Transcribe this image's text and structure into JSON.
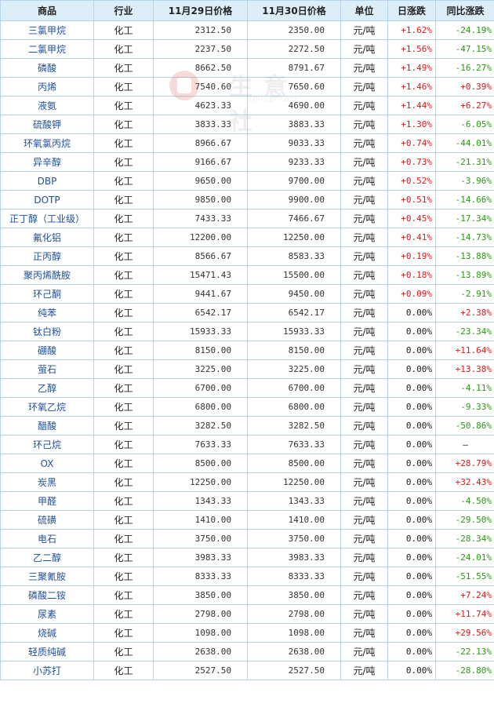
{
  "table": {
    "headers": {
      "name": "商品",
      "industry": "行业",
      "price1": "11月29日价格",
      "price2": "11月30日价格",
      "unit": "单位",
      "day_change": "日涨跌",
      "yoy_change": "同比涨跌"
    },
    "rows": [
      {
        "name": "三氯甲烷",
        "industry": "化工",
        "p1": "2312.50",
        "p2": "2350.00",
        "unit": "元/吨",
        "day": "+1.62%",
        "yoy": "-24.19%"
      },
      {
        "name": "二氯甲烷",
        "industry": "化工",
        "p1": "2237.50",
        "p2": "2272.50",
        "unit": "元/吨",
        "day": "+1.56%",
        "yoy": "-47.15%"
      },
      {
        "name": "磷酸",
        "industry": "化工",
        "p1": "8662.50",
        "p2": "8791.67",
        "unit": "元/吨",
        "day": "+1.49%",
        "yoy": "-16.27%"
      },
      {
        "name": "丙烯",
        "industry": "化工",
        "p1": "7540.60",
        "p2": "7650.60",
        "unit": "元/吨",
        "day": "+1.46%",
        "yoy": "+0.39%"
      },
      {
        "name": "液氨",
        "industry": "化工",
        "p1": "4623.33",
        "p2": "4690.00",
        "unit": "元/吨",
        "day": "+1.44%",
        "yoy": "+6.27%"
      },
      {
        "name": "硫酸钾",
        "industry": "化工",
        "p1": "3833.33",
        "p2": "3883.33",
        "unit": "元/吨",
        "day": "+1.30%",
        "yoy": "-6.05%"
      },
      {
        "name": "环氧氯丙烷",
        "industry": "化工",
        "p1": "8966.67",
        "p2": "9033.33",
        "unit": "元/吨",
        "day": "+0.74%",
        "yoy": "-44.01%"
      },
      {
        "name": "异辛醇",
        "industry": "化工",
        "p1": "9166.67",
        "p2": "9233.33",
        "unit": "元/吨",
        "day": "+0.73%",
        "yoy": "-21.31%"
      },
      {
        "name": "DBP",
        "industry": "化工",
        "p1": "9650.00",
        "p2": "9700.00",
        "unit": "元/吨",
        "day": "+0.52%",
        "yoy": "-3.96%"
      },
      {
        "name": "DOTP",
        "industry": "化工",
        "p1": "9850.00",
        "p2": "9900.00",
        "unit": "元/吨",
        "day": "+0.51%",
        "yoy": "-14.66%"
      },
      {
        "name": "正丁醇（工业级）",
        "industry": "化工",
        "p1": "7433.33",
        "p2": "7466.67",
        "unit": "元/吨",
        "day": "+0.45%",
        "yoy": "-17.34%"
      },
      {
        "name": "氟化铝",
        "industry": "化工",
        "p1": "12200.00",
        "p2": "12250.00",
        "unit": "元/吨",
        "day": "+0.41%",
        "yoy": "-14.73%"
      },
      {
        "name": "正丙醇",
        "industry": "化工",
        "p1": "8566.67",
        "p2": "8583.33",
        "unit": "元/吨",
        "day": "+0.19%",
        "yoy": "-13.88%"
      },
      {
        "name": "聚丙烯酰胺",
        "industry": "化工",
        "p1": "15471.43",
        "p2": "15500.00",
        "unit": "元/吨",
        "day": "+0.18%",
        "yoy": "-13.89%"
      },
      {
        "name": "环己酮",
        "industry": "化工",
        "p1": "9441.67",
        "p2": "9450.00",
        "unit": "元/吨",
        "day": "+0.09%",
        "yoy": "-2.91%"
      },
      {
        "name": "纯苯",
        "industry": "化工",
        "p1": "6542.17",
        "p2": "6542.17",
        "unit": "元/吨",
        "day": "0.00%",
        "yoy": "+2.38%"
      },
      {
        "name": "钛白粉",
        "industry": "化工",
        "p1": "15933.33",
        "p2": "15933.33",
        "unit": "元/吨",
        "day": "0.00%",
        "yoy": "-23.34%"
      },
      {
        "name": "硼酸",
        "industry": "化工",
        "p1": "8150.00",
        "p2": "8150.00",
        "unit": "元/吨",
        "day": "0.00%",
        "yoy": "+11.64%"
      },
      {
        "name": "萤石",
        "industry": "化工",
        "p1": "3225.00",
        "p2": "3225.00",
        "unit": "元/吨",
        "day": "0.00%",
        "yoy": "+13.38%"
      },
      {
        "name": "乙醇",
        "industry": "化工",
        "p1": "6700.00",
        "p2": "6700.00",
        "unit": "元/吨",
        "day": "0.00%",
        "yoy": "-4.11%"
      },
      {
        "name": "环氧乙烷",
        "industry": "化工",
        "p1": "6800.00",
        "p2": "6800.00",
        "unit": "元/吨",
        "day": "0.00%",
        "yoy": "-9.33%"
      },
      {
        "name": "醋酸",
        "industry": "化工",
        "p1": "3282.50",
        "p2": "3282.50",
        "unit": "元/吨",
        "day": "0.00%",
        "yoy": "-50.86%"
      },
      {
        "name": "环己烷",
        "industry": "化工",
        "p1": "7633.33",
        "p2": "7633.33",
        "unit": "元/吨",
        "day": "0.00%",
        "yoy": "—"
      },
      {
        "name": "OX",
        "industry": "化工",
        "p1": "8500.00",
        "p2": "8500.00",
        "unit": "元/吨",
        "day": "0.00%",
        "yoy": "+28.79%"
      },
      {
        "name": "炭黑",
        "industry": "化工",
        "p1": "12250.00",
        "p2": "12250.00",
        "unit": "元/吨",
        "day": "0.00%",
        "yoy": "+32.43%"
      },
      {
        "name": "甲醛",
        "industry": "化工",
        "p1": "1343.33",
        "p2": "1343.33",
        "unit": "元/吨",
        "day": "0.00%",
        "yoy": "-4.50%"
      },
      {
        "name": "硫磺",
        "industry": "化工",
        "p1": "1410.00",
        "p2": "1410.00",
        "unit": "元/吨",
        "day": "0.00%",
        "yoy": "-29.50%"
      },
      {
        "name": "电石",
        "industry": "化工",
        "p1": "3750.00",
        "p2": "3750.00",
        "unit": "元/吨",
        "day": "0.00%",
        "yoy": "-28.34%"
      },
      {
        "name": "乙二醇",
        "industry": "化工",
        "p1": "3983.33",
        "p2": "3983.33",
        "unit": "元/吨",
        "day": "0.00%",
        "yoy": "-24.01%"
      },
      {
        "name": "三聚氰胺",
        "industry": "化工",
        "p1": "8333.33",
        "p2": "8333.33",
        "unit": "元/吨",
        "day": "0.00%",
        "yoy": "-51.55%"
      },
      {
        "name": "磷酸二铵",
        "industry": "化工",
        "p1": "3850.00",
        "p2": "3850.00",
        "unit": "元/吨",
        "day": "0.00%",
        "yoy": "+7.24%"
      },
      {
        "name": "尿素",
        "industry": "化工",
        "p1": "2798.00",
        "p2": "2798.00",
        "unit": "元/吨",
        "day": "0.00%",
        "yoy": "+11.74%"
      },
      {
        "name": "烧碱",
        "industry": "化工",
        "p1": "1098.00",
        "p2": "1098.00",
        "unit": "元/吨",
        "day": "0.00%",
        "yoy": "+29.56%"
      },
      {
        "name": "轻质纯碱",
        "industry": "化工",
        "p1": "2638.00",
        "p2": "2638.00",
        "unit": "元/吨",
        "day": "0.00%",
        "yoy": "-22.13%"
      },
      {
        "name": "小苏打",
        "industry": "化工",
        "p1": "2527.50",
        "p2": "2527.50",
        "unit": "元/吨",
        "day": "0.00%",
        "yoy": "-28.80%"
      }
    ]
  },
  "watermark": {
    "text": "生意社",
    "subtext": "100ppi.com"
  },
  "colors": {
    "up": "#e01515",
    "down": "#2a9a12",
    "header_bg": "#dceefa",
    "border": "#b6d3ec",
    "name_link": "#1f4f9c"
  }
}
